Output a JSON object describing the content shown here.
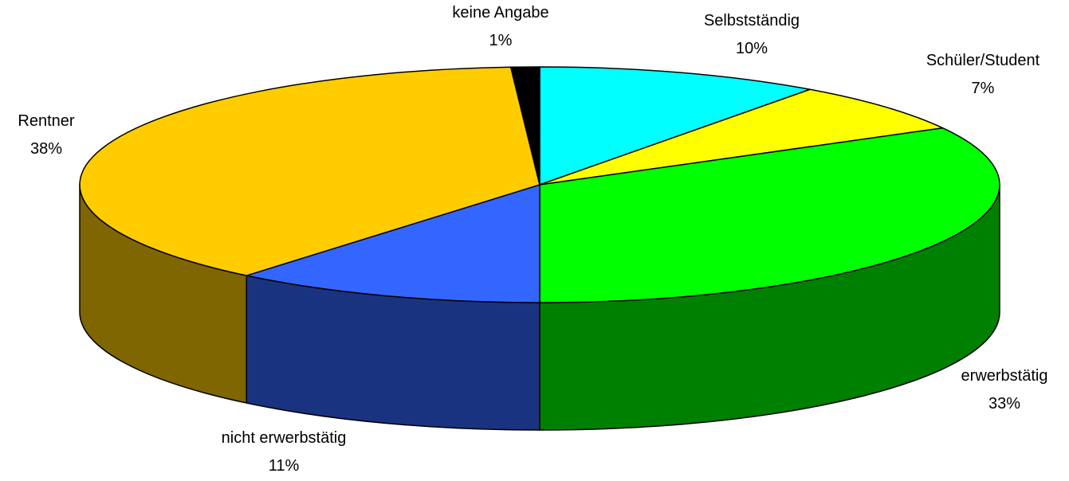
{
  "chart_data": {
    "type": "pie3d",
    "categories": [
      "Selbstständig",
      "Schüler/Student",
      "erwerbstätig",
      "nicht erwerbstätig",
      "Rentner",
      "keine Angabe"
    ],
    "values": [
      10,
      7,
      33,
      11,
      38,
      1
    ],
    "value_labels": [
      "10%",
      "7%",
      "33%",
      "11%",
      "38%",
      "1%"
    ],
    "colors": [
      "#00ffff",
      "#ffff00",
      "#00ff00",
      "#3366ff",
      "#ffcc00",
      "#000000"
    ]
  }
}
